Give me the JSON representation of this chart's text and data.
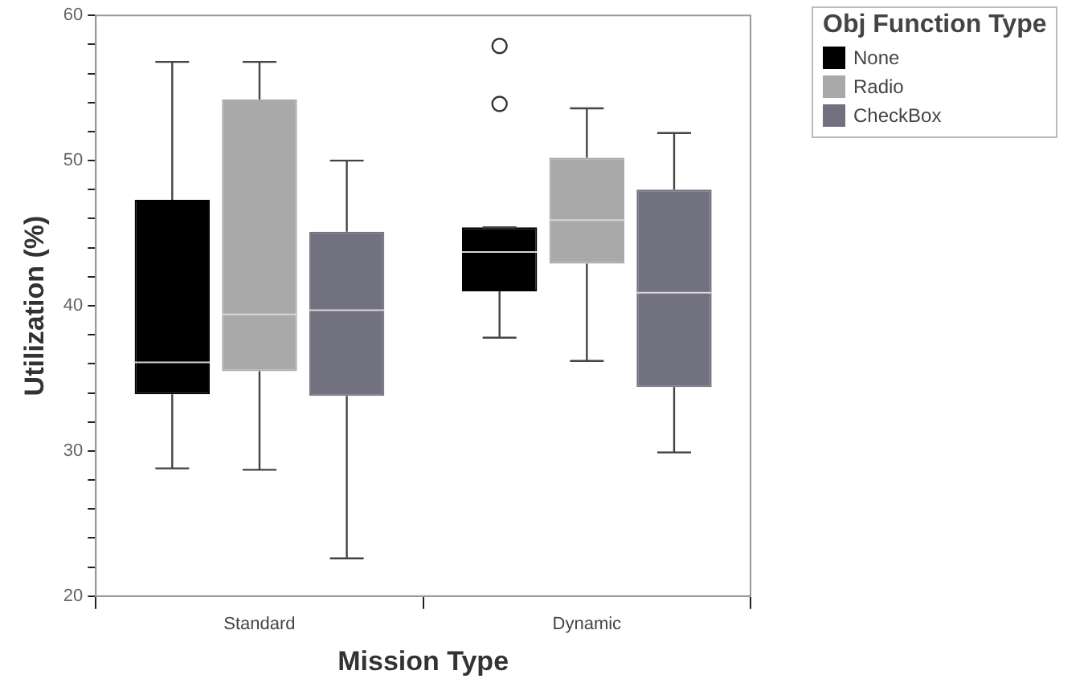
{
  "chart_data": {
    "type": "box",
    "xlabel": "Mission Type",
    "ylabel": "Utilization (%)",
    "legend_title": "Obj Function Type",
    "legend": "top right",
    "grid": false,
    "categories": [
      "Standard",
      "Dynamic"
    ],
    "ylim": [
      20,
      60
    ],
    "yticks": [
      20,
      {
        "value": 22,
        "label": null
      },
      {
        "value": 24,
        "label": null
      },
      {
        "value": 26,
        "label": null
      },
      {
        "value": 28,
        "label": null
      },
      30,
      {
        "value": 32,
        "label": null
      },
      {
        "value": 34,
        "label": null
      },
      {
        "value": 36,
        "label": null
      },
      {
        "value": 38,
        "label": null
      },
      40,
      {
        "value": 42,
        "label": null
      },
      {
        "value": 44,
        "label": null
      },
      {
        "value": 46,
        "label": null
      },
      {
        "value": 48,
        "label": null
      },
      50,
      {
        "value": 52,
        "label": null
      },
      {
        "value": 54,
        "label": null
      },
      {
        "value": 56,
        "label": null
      },
      {
        "value": 58,
        "label": null
      },
      60
    ],
    "series": [
      {
        "name": "None",
        "color": "#000000",
        "boxes": [
          {
            "low": 28.8,
            "q1": 33.9,
            "median": 36.1,
            "q3": 47.3,
            "high": 56.8
          },
          {
            "low": 37.8,
            "q1": 41.0,
            "median": 43.7,
            "q3": 45.4,
            "high": 45.4,
            "outliers": [
              57.9,
              53.9
            ]
          }
        ]
      },
      {
        "name": "Radio",
        "color": "#a9a9a9",
        "boxes": [
          {
            "low": 28.7,
            "q1": 35.5,
            "median": 39.4,
            "q3": 54.2,
            "high": 56.8
          },
          {
            "low": 36.2,
            "q1": 42.9,
            "median": 45.9,
            "q3": 50.2,
            "high": 53.6
          }
        ]
      },
      {
        "name": "CheckBox",
        "color": "#72717f",
        "boxes": [
          {
            "low": 22.6,
            "q1": 33.8,
            "median": 39.7,
            "q3": 45.1,
            "high": 50.0
          },
          {
            "low": 29.9,
            "q1": 34.4,
            "median": 40.9,
            "q3": 48.0,
            "high": 51.9
          }
        ]
      }
    ]
  }
}
